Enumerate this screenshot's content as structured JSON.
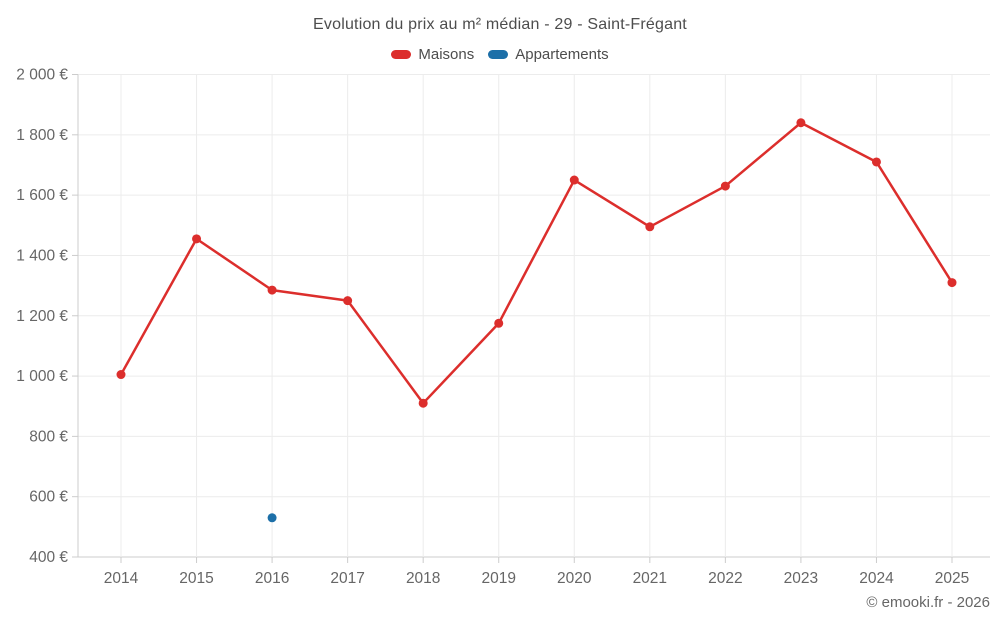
{
  "chart_data": {
    "type": "line",
    "title": "Evolution du prix au m² médian - 29 - Saint-Frégant",
    "x": [
      2014,
      2015,
      2016,
      2017,
      2018,
      2019,
      2020,
      2021,
      2022,
      2023,
      2024,
      2025
    ],
    "series": [
      {
        "name": "Maisons",
        "color": "#dc2e2c",
        "draw_line": true,
        "values": [
          1005,
          1455,
          1285,
          1250,
          910,
          1175,
          1650,
          1495,
          1630,
          1840,
          1710,
          1310
        ]
      },
      {
        "name": "Appartements",
        "color": "#1c6fa8",
        "draw_line": false,
        "values": [
          null,
          null,
          530,
          null,
          null,
          null,
          null,
          null,
          null,
          null,
          null,
          null
        ]
      }
    ],
    "ylim": [
      400,
      2000
    ],
    "ytick_step": 200,
    "y_unit": "€",
    "grid": true,
    "legend_position": "top",
    "grid_color": "#ececec",
    "axis_color": "#cccccc",
    "tick_label_color": "#666666"
  },
  "footer": {
    "copyright": "© emooki.fr - 2026"
  }
}
